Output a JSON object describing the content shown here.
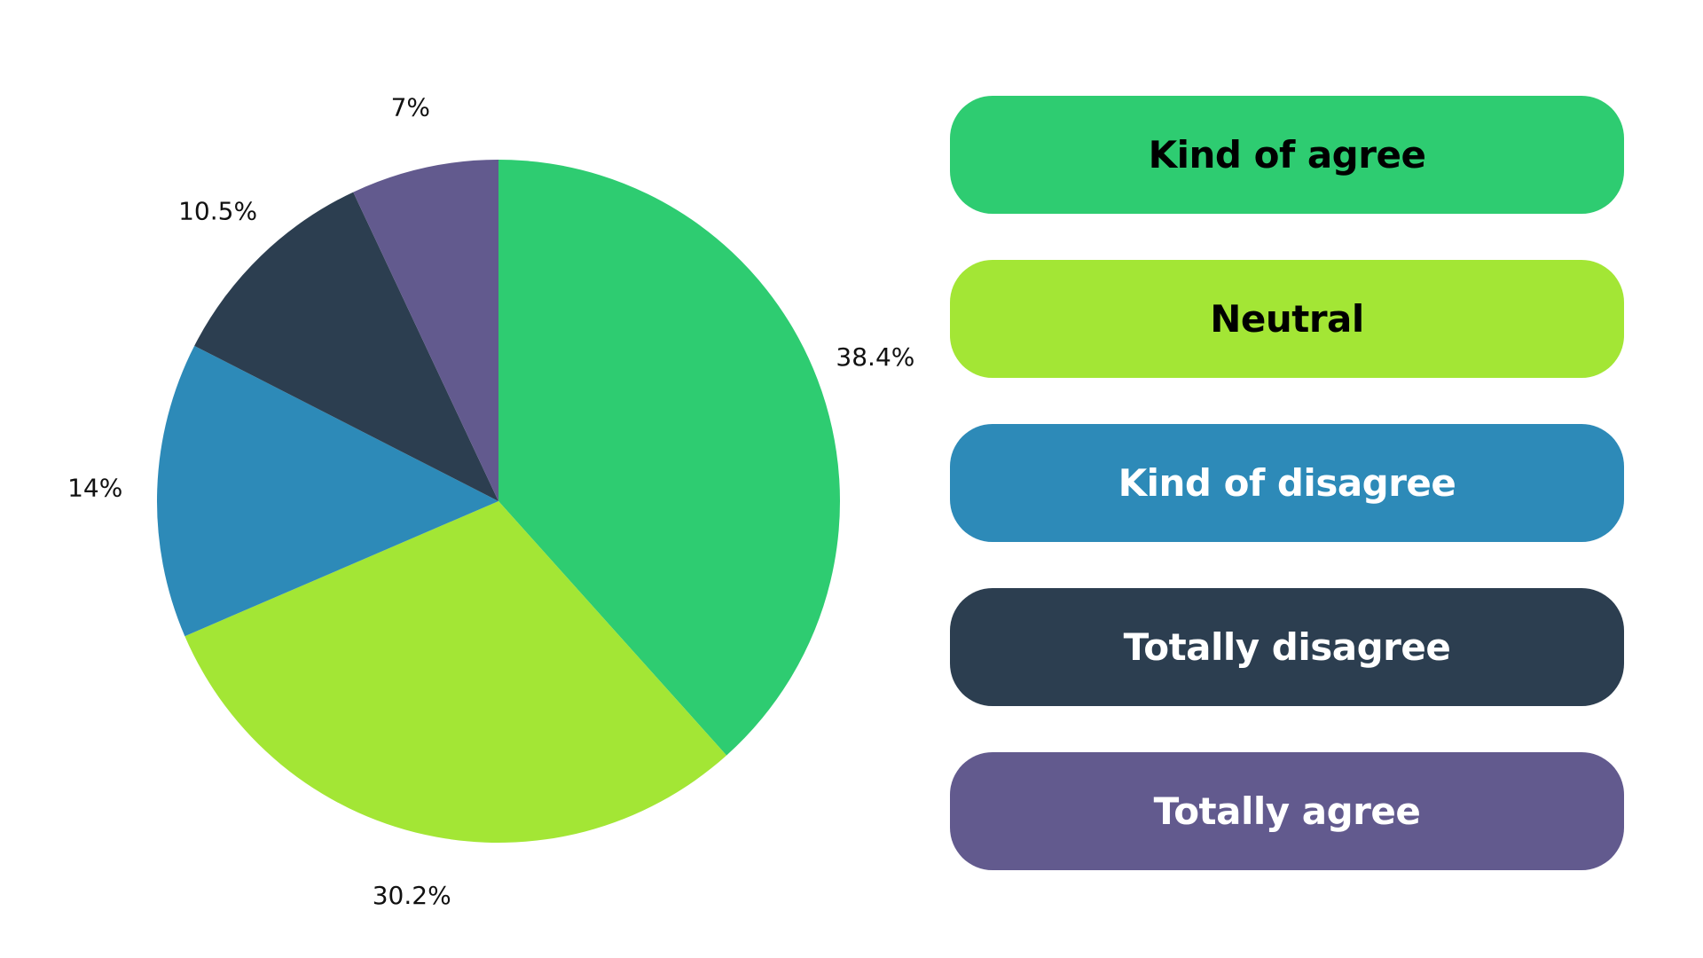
{
  "chart_data": {
    "type": "pie",
    "title": "",
    "slices": [
      {
        "label": "Kind of agree",
        "value": 38.4,
        "value_label": "38.4%",
        "color": "#2ECC71",
        "text_color": "#000000"
      },
      {
        "label": "Neutral",
        "value": 30.2,
        "value_label": "30.2%",
        "color": "#A3E635",
        "text_color": "#000000"
      },
      {
        "label": "Kind of disagree",
        "value": 14,
        "value_label": "14%",
        "color": "#2D8AB8",
        "text_color": "#FFFFFF"
      },
      {
        "label": "Totally disagree",
        "value": 10.5,
        "value_label": "10.5%",
        "color": "#2C3E50",
        "text_color": "#FFFFFF"
      },
      {
        "label": "Totally agree",
        "value": 7,
        "value_label": "7%",
        "color": "#625A8E",
        "text_color": "#FFFFFF"
      }
    ],
    "start": "12 o'clock",
    "direction": "clockwise",
    "legend_position": "right"
  }
}
